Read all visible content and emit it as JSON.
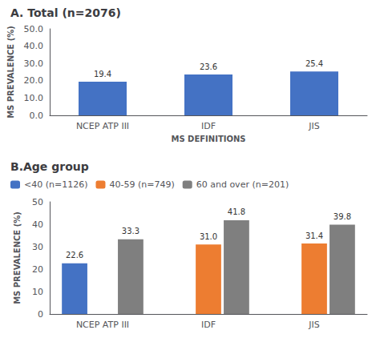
{
  "chart_data": [
    {
      "type": "bar",
      "title": "A. Total (n=2076)",
      "categories": [
        "NCEP ATP III",
        "IDF",
        "JIS"
      ],
      "values": [
        19.4,
        23.6,
        25.4
      ],
      "color": "#4472C4",
      "xlabel": "MS DEFINITIONS",
      "ylabel": "MS PREVALENCE (%)",
      "ylim": [
        0,
        50
      ],
      "yticks": [
        {
          "value": 0,
          "label": "0.0"
        },
        {
          "value": 10,
          "label": "10.0"
        },
        {
          "value": 20,
          "label": "20.0"
        },
        {
          "value": 30,
          "label": "30.0"
        },
        {
          "value": 40,
          "label": "40.0"
        },
        {
          "value": 50,
          "label": "50.0"
        }
      ],
      "grid": false,
      "data_labels": true
    },
    {
      "type": "bar",
      "title": "B.Age group",
      "categories": [
        "NCEP ATP III",
        "IDF",
        "JIS"
      ],
      "series": [
        {
          "name": "<40 (n=1126)",
          "color": "#4472C4",
          "values": [
            22.6,
            null,
            null
          ]
        },
        {
          "name": "40-59 (n=749)",
          "color": "#ED7D31",
          "values": [
            null,
            31.0,
            31.4
          ],
          "value_labels": [
            null,
            "31.0",
            "31.4"
          ]
        },
        {
          "name": "60 and over (n=201)",
          "color": "#7F7F7F",
          "values": [
            33.3,
            41.8,
            39.8
          ]
        }
      ],
      "ylabel": "MS PREVALENCE (%)",
      "ylim": [
        0,
        50
      ],
      "yticks": [
        0,
        10,
        20,
        30,
        40,
        50
      ],
      "grid": false,
      "legend": "upper left",
      "data_labels": true
    }
  ]
}
